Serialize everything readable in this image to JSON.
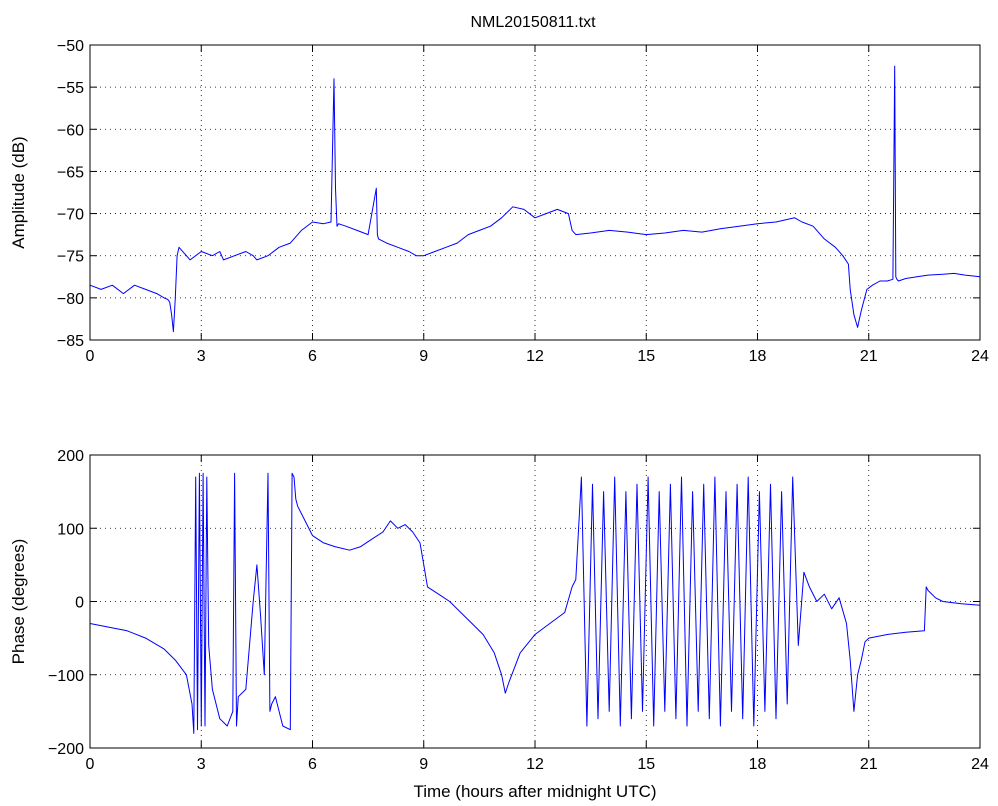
{
  "title": "NML20150811.txt",
  "colors": {
    "line": "#0000ff",
    "axis": "#000000",
    "grid": "#000000",
    "background": "#ffffff"
  },
  "chart_data": [
    {
      "type": "line",
      "title": "NML20150811.txt",
      "xlabel": "",
      "ylabel": "Amplitude (dB)",
      "xlim": [
        0,
        24
      ],
      "ylim": [
        -85,
        -50
      ],
      "xticks": [
        0,
        3,
        6,
        9,
        12,
        15,
        18,
        21,
        24
      ],
      "yticks": [
        -85,
        -80,
        -75,
        -70,
        -65,
        -60,
        -55,
        -50
      ],
      "xtick_labels": [
        "0",
        "3",
        "6",
        "9",
        "12",
        "15",
        "18",
        "21",
        "24"
      ],
      "ytick_labels": [
        "−85",
        "−80",
        "−75",
        "−70",
        "−65",
        "−60",
        "−55",
        "−50"
      ],
      "grid": true,
      "series": [
        {
          "x": [
            0,
            0.3,
            0.6,
            0.9,
            1.2,
            1.5,
            1.8,
            2.0,
            2.1,
            2.15,
            2.2,
            2.25,
            2.3,
            2.35,
            2.4,
            2.7,
            3.0,
            3.3,
            3.5,
            3.6,
            3.9,
            4.2,
            4.4,
            4.5,
            4.8,
            5.1,
            5.4,
            5.7,
            6.0,
            6.3,
            6.5,
            6.58,
            6.62,
            6.66,
            6.7,
            6.9,
            7.2,
            7.5,
            7.72,
            7.75,
            7.78,
            8.0,
            8.3,
            8.6,
            8.8,
            9.0,
            9.3,
            9.6,
            9.9,
            10.2,
            10.5,
            10.8,
            11.1,
            11.4,
            11.7,
            12.0,
            12.3,
            12.6,
            12.9,
            13.0,
            13.1,
            13.5,
            14.0,
            14.5,
            15.0,
            15.5,
            16.0,
            16.5,
            17.0,
            17.5,
            18.0,
            18.5,
            19.0,
            19.2,
            19.5,
            19.8,
            20.1,
            20.3,
            20.45,
            20.5,
            20.6,
            20.7,
            20.8,
            20.95,
            21.1,
            21.3,
            21.5,
            21.65,
            21.7,
            21.73,
            21.76,
            21.8,
            22.0,
            22.3,
            22.6,
            23.0,
            23.3,
            23.6,
            24.0
          ],
          "values": [
            -78.5,
            -79,
            -78.5,
            -79.5,
            -78.5,
            -79,
            -79.5,
            -80,
            -80.2,
            -80.5,
            -82,
            -84,
            -80,
            -75,
            -74,
            -75.5,
            -74.5,
            -75,
            -74.5,
            -75.5,
            -75,
            -74.5,
            -75,
            -75.5,
            -75,
            -74,
            -73.5,
            -72,
            -71,
            -71.2,
            -71,
            -54,
            -67,
            -71.5,
            -71.2,
            -71.5,
            -72,
            -72.5,
            -67,
            -72.5,
            -73,
            -73.5,
            -74,
            -74.5,
            -75,
            -75,
            -74.5,
            -74,
            -73.5,
            -72.5,
            -72,
            -71.5,
            -70.5,
            -69.2,
            -69.5,
            -70.5,
            -70,
            -69.5,
            -70,
            -72,
            -72.5,
            -72.3,
            -72,
            -72.2,
            -72.5,
            -72.3,
            -72,
            -72.2,
            -71.8,
            -71.5,
            -71.2,
            -71,
            -70.5,
            -71,
            -71.5,
            -73,
            -74,
            -75,
            -76,
            -79,
            -82,
            -83.5,
            -81.5,
            -79,
            -78.5,
            -78,
            -78,
            -77.8,
            -52.5,
            -77.5,
            -77.8,
            -78,
            -77.7,
            -77.5,
            -77.3,
            -77.2,
            -77.1,
            -77.3,
            -77.5
          ]
        }
      ]
    },
    {
      "type": "line",
      "title": "",
      "xlabel": "Time (hours after midnight UTC)",
      "ylabel": "Phase (degrees)",
      "xlim": [
        0,
        24
      ],
      "ylim": [
        -200,
        200
      ],
      "xticks": [
        0,
        3,
        6,
        9,
        12,
        15,
        18,
        21,
        24
      ],
      "yticks": [
        -200,
        -100,
        0,
        100,
        200
      ],
      "xtick_labels": [
        "0",
        "3",
        "6",
        "9",
        "12",
        "15",
        "18",
        "21",
        "24"
      ],
      "ytick_labels": [
        "−200",
        "−100",
        "0",
        "100",
        "200"
      ],
      "grid": true,
      "series": [
        {
          "x": [
            0,
            0.5,
            1.0,
            1.5,
            2.0,
            2.3,
            2.6,
            2.75,
            2.8,
            2.85,
            2.9,
            2.95,
            3.0,
            3.05,
            3.1,
            3.15,
            3.2,
            3.3,
            3.5,
            3.7,
            3.85,
            3.9,
            3.95,
            4.0,
            4.2,
            4.4,
            4.5,
            4.6,
            4.7,
            4.8,
            4.85,
            4.9,
            5.0,
            5.2,
            5.4,
            5.45,
            5.5,
            5.55,
            5.6,
            5.8,
            6.0,
            6.3,
            6.6,
            7.0,
            7.3,
            7.6,
            7.9,
            8.1,
            8.3,
            8.5,
            8.7,
            8.9,
            9.0,
            9.1,
            9.4,
            9.7,
            10.0,
            10.3,
            10.6,
            10.9,
            11.1,
            11.2,
            11.3,
            11.6,
            12.0,
            12.4,
            12.8,
            13.0,
            13.1,
            13.25,
            13.4,
            13.55,
            13.7,
            13.85,
            14.0,
            14.15,
            14.3,
            14.45,
            14.6,
            14.75,
            14.9,
            15.05,
            15.2,
            15.35,
            15.5,
            15.65,
            15.8,
            15.95,
            16.1,
            16.25,
            16.4,
            16.55,
            16.7,
            16.85,
            17.0,
            17.15,
            17.3,
            17.45,
            17.6,
            17.75,
            17.9,
            18.05,
            18.2,
            18.35,
            18.5,
            18.65,
            18.8,
            18.95,
            19.1,
            19.25,
            19.4,
            19.6,
            19.8,
            20.0,
            20.2,
            20.4,
            20.5,
            20.6,
            20.7,
            20.8,
            20.9,
            21.0,
            21.5,
            22.0,
            22.5,
            22.55,
            22.6,
            22.8,
            23.0,
            23.5,
            24.0
          ],
          "values": [
            -30,
            -35,
            -40,
            -50,
            -65,
            -80,
            -100,
            -140,
            -180,
            170,
            -175,
            175,
            -170,
            175,
            -170,
            170,
            -60,
            -120,
            -160,
            -170,
            -150,
            175,
            -170,
            -130,
            -120,
            0,
            50,
            -20,
            -100,
            175,
            -150,
            -140,
            -130,
            -170,
            -175,
            175,
            170,
            140,
            130,
            110,
            90,
            80,
            75,
            70,
            75,
            85,
            95,
            110,
            100,
            105,
            95,
            80,
            50,
            20,
            10,
            0,
            -15,
            -30,
            -45,
            -70,
            -100,
            -125,
            -110,
            -70,
            -45,
            -30,
            -15,
            20,
            30,
            170,
            -170,
            160,
            -160,
            150,
            -150,
            170,
            -170,
            150,
            -160,
            160,
            -150,
            170,
            -170,
            150,
            -150,
            160,
            -160,
            170,
            -170,
            150,
            -150,
            160,
            -160,
            170,
            -170,
            150,
            -150,
            160,
            -160,
            170,
            -170,
            150,
            -150,
            160,
            -160,
            150,
            -140,
            170,
            -60,
            40,
            20,
            0,
            10,
            -10,
            5,
            -30,
            -80,
            -150,
            -100,
            -80,
            -55,
            -50,
            -45,
            -42,
            -40,
            20,
            15,
            5,
            0,
            -3,
            -5
          ]
        }
      ]
    }
  ]
}
